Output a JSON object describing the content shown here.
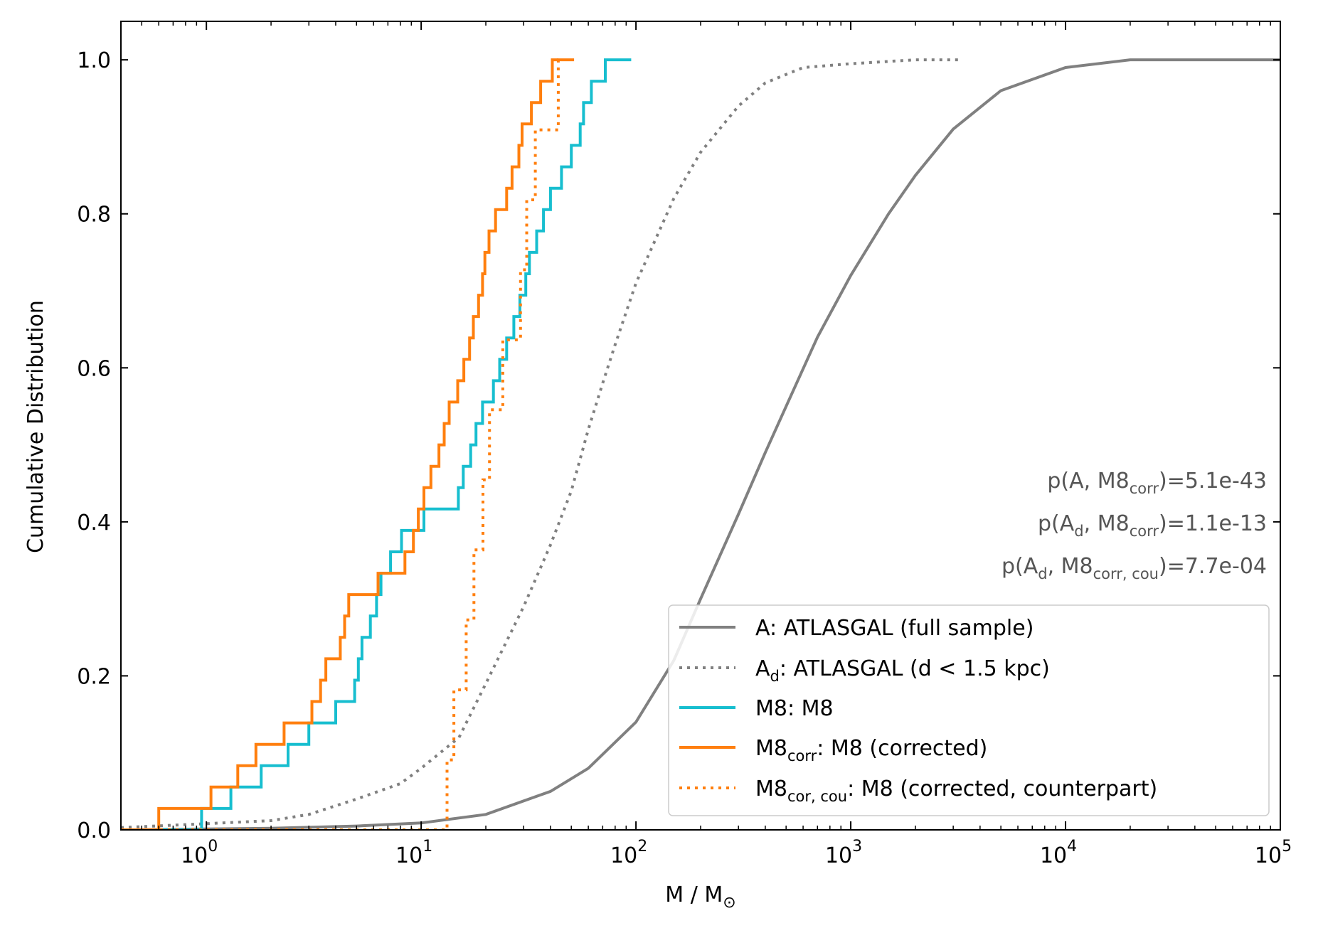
{
  "chart_data": {
    "type": "line",
    "title": "",
    "xlabel": "M / M",
    "xlabel_sub": "⊙",
    "ylabel": "Cumulative Distribution",
    "xscale": "log",
    "xlim": [
      0.4,
      100000
    ],
    "ylim": [
      0.0,
      1.05
    ],
    "x_ticks": [
      {
        "value": 1,
        "base": "10",
        "exp": "0"
      },
      {
        "value": 10,
        "base": "10",
        "exp": "1"
      },
      {
        "value": 100,
        "base": "10",
        "exp": "2"
      },
      {
        "value": 1000,
        "base": "10",
        "exp": "3"
      },
      {
        "value": 10000,
        "base": "10",
        "exp": "4"
      },
      {
        "value": 100000,
        "base": "10",
        "exp": "5"
      }
    ],
    "y_ticks": [
      {
        "value": 0.0,
        "label": "0.0"
      },
      {
        "value": 0.2,
        "label": "0.2"
      },
      {
        "value": 0.4,
        "label": "0.4"
      },
      {
        "value": 0.6,
        "label": "0.6"
      },
      {
        "value": 0.8,
        "label": "0.8"
      },
      {
        "value": 1.0,
        "label": "1.0"
      }
    ],
    "annotations": [
      {
        "main": "p(A, M8",
        "sub": "corr",
        "sub2": "",
        "tail": ")=5.1e-43",
        "kind": "A"
      },
      {
        "main": "p(A",
        "sub": "d",
        "mid": ", M8",
        "sub2": "corr",
        "tail": ")=1.1e-13",
        "kind": "B"
      },
      {
        "main": "p(A",
        "sub": "d",
        "mid": ", M8",
        "sub2": "corr, cou",
        "tail": ")=7.7e-04",
        "kind": "B"
      }
    ],
    "legend": [
      {
        "series": "A",
        "pre": "A: ATLASGAL (full sample)",
        "sub": "",
        "post": ""
      },
      {
        "series": "Ad",
        "pre": "A",
        "sub": "d",
        "post": ": ATLASGAL (d < 1.5 kpc)"
      },
      {
        "series": "M8",
        "pre": "M8: M8",
        "sub": "",
        "post": ""
      },
      {
        "series": "M8corr",
        "pre": "M8",
        "sub": "corr",
        "post": ": M8 (corrected)"
      },
      {
        "series": "M8corcou",
        "pre": "M8",
        "sub": "cor, cou",
        "post": ": M8 (corrected, counterpart)"
      }
    ],
    "series": [
      {
        "name": "A",
        "label": "A: ATLASGAL (full sample)",
        "color": "#808080",
        "dash": "solid",
        "kind": "curve",
        "x": [
          0.4,
          2,
          5,
          10,
          20,
          40,
          60,
          100,
          150,
          200,
          300,
          400,
          500,
          700,
          1000,
          1500,
          2000,
          3000,
          5000,
          10000,
          20000,
          100000
        ],
        "y": [
          0.0,
          0.002,
          0.005,
          0.009,
          0.02,
          0.05,
          0.08,
          0.14,
          0.22,
          0.3,
          0.41,
          0.49,
          0.55,
          0.64,
          0.72,
          0.8,
          0.85,
          0.91,
          0.96,
          0.99,
          1.0,
          1.0
        ]
      },
      {
        "name": "Ad",
        "label": "Ad: ATLASGAL (d < 1.5 kpc)",
        "color": "#808080",
        "dash": "dotted",
        "kind": "curve",
        "x": [
          0.4,
          1,
          2,
          3,
          5,
          8,
          10,
          15,
          20,
          30,
          40,
          50,
          60,
          70,
          80,
          100,
          150,
          200,
          300,
          400,
          600,
          1000,
          2000,
          3200
        ],
        "y": [
          0.003,
          0.008,
          0.012,
          0.02,
          0.04,
          0.06,
          0.08,
          0.12,
          0.19,
          0.29,
          0.37,
          0.44,
          0.52,
          0.58,
          0.63,
          0.71,
          0.82,
          0.88,
          0.94,
          0.97,
          0.99,
          0.995,
          1.0,
          1.0
        ]
      },
      {
        "name": "M8",
        "label": "M8: M8",
        "color": "#17becf",
        "dash": "solid",
        "kind": "step",
        "x": [
          0.95,
          1.3,
          1.8,
          2.4,
          3.0,
          4.0,
          4.9,
          5.1,
          5.3,
          5.8,
          6.2,
          6.5,
          7.2,
          8.1,
          10.3,
          14.9,
          15.7,
          17.0,
          18.0,
          19.3,
          21.7,
          23.2,
          25.0,
          27.0,
          28.8,
          30.7,
          31.9,
          34.5,
          37.1,
          40.0,
          45.0,
          50.0,
          55.0,
          57.0,
          62.0,
          72.0,
          85.0,
          95.0
        ],
        "y": [
          0.0278,
          0.0556,
          0.0833,
          0.1111,
          0.1389,
          0.1667,
          0.1944,
          0.2222,
          0.25,
          0.2778,
          0.3056,
          0.3333,
          0.3611,
          0.3889,
          0.4167,
          0.4444,
          0.4722,
          0.5,
          0.5278,
          0.5556,
          0.5833,
          0.6111,
          0.6389,
          0.6667,
          0.6944,
          0.7222,
          0.75,
          0.7778,
          0.8056,
          0.8333,
          0.8611,
          0.8889,
          0.9167,
          0.9444,
          0.9722,
          1.0,
          1.0,
          1.0
        ]
      },
      {
        "name": "M8corr",
        "label": "M8corr: M8 (corrected)",
        "color": "#ff7f0e",
        "dash": "solid",
        "kind": "step",
        "x": [
          0.6,
          1.05,
          1.4,
          1.7,
          2.3,
          3.1,
          3.4,
          3.6,
          4.2,
          4.4,
          4.6,
          6.3,
          8.4,
          9.2,
          9.7,
          10.3,
          11.1,
          12.1,
          12.8,
          13.5,
          14.8,
          15.8,
          16.8,
          17.5,
          18.5,
          19.3,
          19.8,
          20.7,
          22.2,
          25.0,
          26.5,
          28.5,
          29.5,
          32.6,
          36.0,
          40.8,
          43.0,
          51.5
        ],
        "y": [
          0.0278,
          0.0556,
          0.0833,
          0.1111,
          0.1389,
          0.1667,
          0.1944,
          0.2222,
          0.25,
          0.2778,
          0.3056,
          0.3333,
          0.3611,
          0.3889,
          0.4167,
          0.4444,
          0.4722,
          0.5,
          0.5278,
          0.5556,
          0.5833,
          0.6111,
          0.6389,
          0.6667,
          0.6944,
          0.7222,
          0.75,
          0.7778,
          0.8056,
          0.8333,
          0.8611,
          0.8889,
          0.9167,
          0.9444,
          0.9722,
          1.0,
          1.0,
          1.0
        ]
      },
      {
        "name": "M8corcou",
        "label": "M8cor,cou: M8 (corrected, counterpart)",
        "color": "#ff7f0e",
        "dash": "dotted",
        "kind": "step",
        "x": [
          13.2,
          14.2,
          16.2,
          17.6,
          19.4,
          20.8,
          24.0,
          29.0,
          31.0,
          34.0,
          43.5,
          44.0
        ],
        "y": [
          0.0909,
          0.1818,
          0.2727,
          0.3636,
          0.4545,
          0.5455,
          0.6364,
          0.7273,
          0.8182,
          0.9091,
          1.0,
          1.0
        ]
      }
    ]
  }
}
